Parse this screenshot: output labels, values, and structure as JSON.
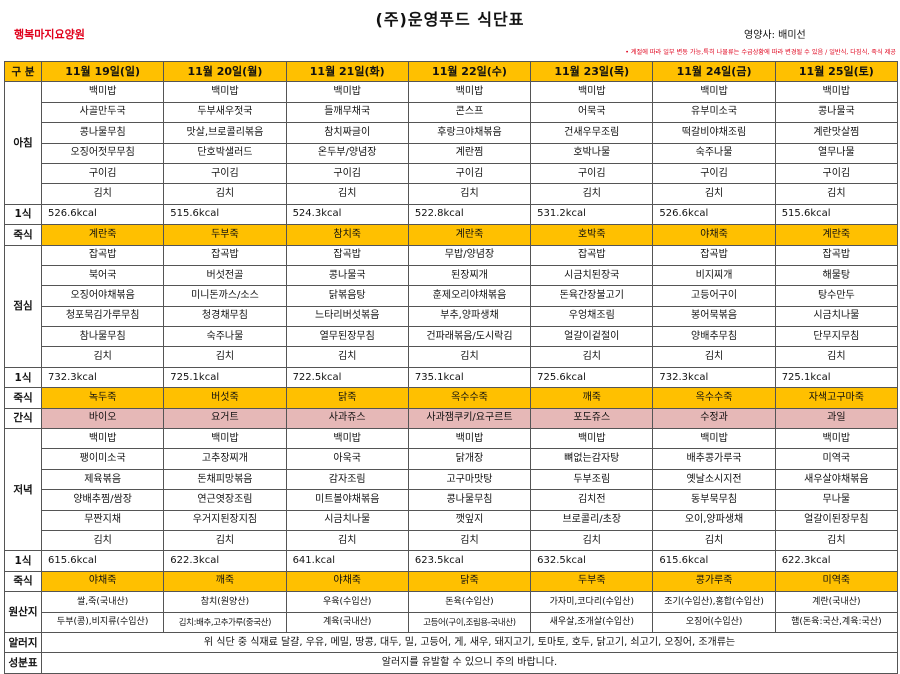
{
  "title": "(주)운영푸드 식단표",
  "facility": "행복마지요양원",
  "dietitian": "영양사: 배미선",
  "notice": "• 계절에 따라 일부 변동 가능,특히 나물류는 수급상황에 따라 변경될 수 있음 / 일반식, 다짐식, 죽식 제공",
  "header": {
    "label": "구 분",
    "days": [
      "11월 19일(일)",
      "11월 20일(월)",
      "11월 21일(화)",
      "11월 22일(수)",
      "11월 23일(목)",
      "11월 24일(금)",
      "11월 25일(토)"
    ]
  },
  "breakfast": {
    "label": "아침",
    "rows": [
      [
        "백미밥",
        "백미밥",
        "백미밥",
        "백미밥",
        "백미밥",
        "백미밥",
        "백미밥"
      ],
      [
        "사골만두국",
        "두부새우젓국",
        "들깨무채국",
        "콘스프",
        "어묵국",
        "유부미소국",
        "콩나물국"
      ],
      [
        "콩나물무침",
        "맛살,브로콜리볶음",
        "참치짜글이",
        "후랑크야채볶음",
        "건새우무조림",
        "떡갈비야채조림",
        "계란맛살찜"
      ],
      [
        "오징어젓무무침",
        "단호박샐러드",
        "온두부/양념장",
        "계란찜",
        "호박나물",
        "숙주나물",
        "열무나물"
      ],
      [
        "구이김",
        "구이김",
        "구이김",
        "구이김",
        "구이김",
        "구이김",
        "구이김"
      ],
      [
        "김치",
        "김치",
        "김치",
        "김치",
        "김치",
        "김치",
        "김치"
      ]
    ],
    "kcal_label": "1식",
    "kcal": [
      "526.6kcal",
      "515.6kcal",
      "524.3kcal",
      "522.8kcal",
      "531.2kcal",
      "526.6kcal",
      "515.6kcal"
    ],
    "porridge_label": "죽식",
    "porridge": [
      "계란죽",
      "두부죽",
      "참치죽",
      "계란죽",
      "호박죽",
      "야채죽",
      "계란죽"
    ]
  },
  "lunch": {
    "label": "점심",
    "rows": [
      [
        "잡곡밥",
        "잡곡밥",
        "잡곡밥",
        "무밥/양념장",
        "잡곡밥",
        "잡곡밥",
        "잡곡밥"
      ],
      [
        "북어국",
        "버섯전골",
        "콩나물국",
        "된장찌개",
        "시금치된장국",
        "비지찌개",
        "해물탕"
      ],
      [
        "오징어야채볶음",
        "미니돈까스/소스",
        "닭볶음탕",
        "훈제오리야채볶음",
        "돈육간장불고기",
        "고등어구이",
        "탕수만두"
      ],
      [
        "청포묵김가루무침",
        "청경채무침",
        "느타리버섯볶음",
        "부추,양파생채",
        "우엉채조림",
        "봉어묵볶음",
        "시금치나물"
      ],
      [
        "참나물무침",
        "숙주나물",
        "열무된장무침",
        "건파래볶음/도시락김",
        "얼갈이겉절이",
        "양배추무침",
        "단무지무침"
      ],
      [
        "김치",
        "김치",
        "김치",
        "김치",
        "김치",
        "김치",
        "김치"
      ]
    ],
    "kcal_label": "1식",
    "kcal": [
      "732.3kcal",
      "725.1kcal",
      "722.5kcal",
      "735.1kcal",
      "725.6kcal",
      "732.3kcal",
      "725.1kcal"
    ],
    "porridge_label": "죽식",
    "porridge": [
      "녹두죽",
      "버섯죽",
      "닭죽",
      "옥수수죽",
      "깨죽",
      "옥수수죽",
      "자색고구마죽"
    ]
  },
  "snack": {
    "label": "간식",
    "items": [
      "바이오",
      "요거트",
      "사과쥬스",
      "사과잼쿠키/요구르트",
      "포도쥬스",
      "수정과",
      "과일"
    ]
  },
  "dinner": {
    "label": "저녁",
    "rows": [
      [
        "백미밥",
        "백미밥",
        "백미밥",
        "백미밥",
        "백미밥",
        "백미밥",
        "백미밥"
      ],
      [
        "팽이미소국",
        "고추장찌개",
        "아욱국",
        "닭개장",
        "뼈없는감자탕",
        "배추콩가루국",
        "미역국"
      ],
      [
        "제육볶음",
        "돈채피망볶음",
        "감자조림",
        "고구마맛탕",
        "두부조림",
        "옛날소시지전",
        "새우살야채볶음"
      ],
      [
        "양배추찜/쌈장",
        "연근엿장조림",
        "미트볼야채볶음",
        "콩나물무침",
        "김치전",
        "동부묵무침",
        "무나물"
      ],
      [
        "무짠지채",
        "우거지된장지짐",
        "시금치나물",
        "깻잎지",
        "브로콜리/초장",
        "오이,양파생채",
        "얼갈이된장무침"
      ],
      [
        "김치",
        "김치",
        "김치",
        "김치",
        "김치",
        "김치",
        "김치"
      ]
    ],
    "kcal_label": "1식",
    "kcal": [
      "615.6kcal",
      "622.3kcal",
      "641.kcal",
      "623.5kcal",
      "632.5kcal",
      "615.6kcal",
      "622.3kcal"
    ],
    "porridge_label": "죽식",
    "porridge": [
      "야채죽",
      "깨죽",
      "야채죽",
      "닭죽",
      "두부죽",
      "콩가루죽",
      "미역죽"
    ]
  },
  "origin": {
    "label": "원산지",
    "row1": [
      "쌀,죽(국내산)",
      "참치(원양산)",
      "우육(수입산)",
      "돈육(수입산)",
      "가자미,코다리(수입산)",
      "조기(수입산),홍합(수입산)",
      "계란(국내산)"
    ],
    "row2": [
      "두부(콩),비지류(수입산)",
      "김치:배추,고추가루(중국산)",
      "계육(국내산)",
      "고등어(구이,조림용-국내산)",
      "새우살,조개살(수입산)",
      "오징어(수입산)",
      "햄(돈육:국산,계육:국산)"
    ]
  },
  "allergy": {
    "label1": "알러지",
    "label2": "성분표",
    "line1": "위 식단 중 식재료 달걀, 우유, 메밀, 땅콩, 대두, 밀, 고등어, 게, 새우, 돼지고기, 토마토, 호두, 닭고기, 쇠고기, 오징어, 조개류는",
    "line2": "알러지를 유발할 수 있으니 주의 바랍니다."
  },
  "colors": {
    "header": "#ffc000",
    "snack": "#e6b8b7",
    "red": "#e0001b"
  }
}
